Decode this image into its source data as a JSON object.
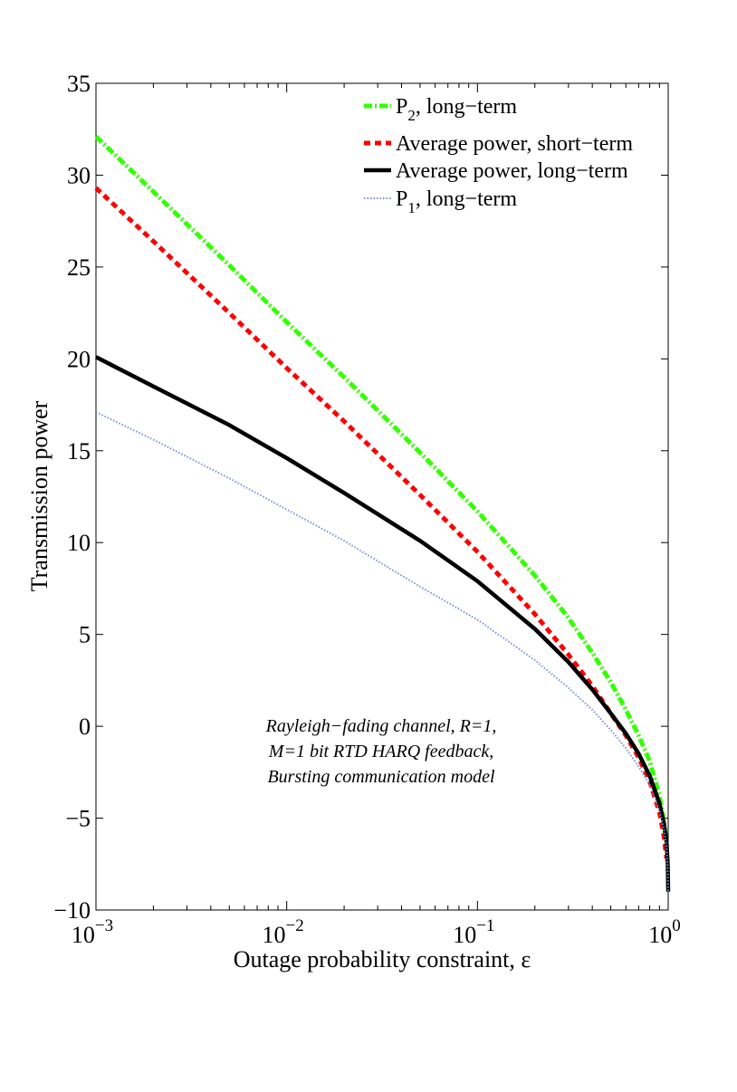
{
  "chart_data": {
    "type": "line",
    "xscale": "log",
    "xlim": [
      0.001,
      1
    ],
    "ylim": [
      -10,
      35
    ],
    "xlabel": "Outage probability constraint, ε",
    "ylabel": "Transmission power",
    "xticks": [
      {
        "value": 0.001,
        "base": "10",
        "exp": "−3"
      },
      {
        "value": 0.01,
        "base": "10",
        "exp": "−2"
      },
      {
        "value": 0.1,
        "base": "10",
        "exp": "−1"
      },
      {
        "value": 1,
        "base": "10",
        "exp": "0"
      }
    ],
    "yticks": [
      "−10",
      "−5",
      "0",
      "5",
      "10",
      "15",
      "20",
      "25",
      "30",
      "35"
    ],
    "grid": false,
    "legend_position": "top-right",
    "annotation": [
      "Rayleigh−fading channel, R=1,",
      "M=1 bit RTD HARQ feedback,",
      "Bursting communication model"
    ],
    "series": [
      {
        "name": "P2, long−term",
        "legend_main": "P",
        "legend_sub": "2",
        "legend_rest": ", long−term",
        "color": "#33ff00",
        "style": "dashdot",
        "x": [
          0.001,
          0.002,
          0.005,
          0.01,
          0.02,
          0.05,
          0.1,
          0.2,
          0.3,
          0.4,
          0.5,
          0.6,
          0.7,
          0.8,
          0.9,
          0.95,
          0.98
        ],
        "y": [
          32.1,
          29.1,
          25.1,
          22.0,
          19.0,
          14.9,
          11.7,
          8.2,
          5.9,
          4.0,
          2.4,
          0.9,
          -0.5,
          -1.9,
          -3.8,
          -5.2,
          -6.5
        ]
      },
      {
        "name": "Average power, short−term",
        "legend_main": "Average power, short−term",
        "legend_sub": "",
        "legend_rest": "",
        "color": "#ff0000",
        "style": "dashed",
        "x": [
          0.001,
          0.002,
          0.005,
          0.01,
          0.02,
          0.05,
          0.1,
          0.2,
          0.3,
          0.4,
          0.5,
          0.6,
          0.7,
          0.8,
          0.9,
          0.95,
          0.98
        ],
        "y": [
          29.3,
          26.4,
          22.5,
          19.5,
          16.6,
          12.6,
          9.5,
          6.1,
          3.9,
          2.2,
          0.7,
          -0.5,
          -1.7,
          -3.0,
          -4.7,
          -6.0,
          -7.2
        ]
      },
      {
        "name": "Average power, long−term",
        "legend_main": "Average power, long−term",
        "legend_sub": "",
        "legend_rest": "",
        "color": "#000000",
        "style": "solid",
        "x": [
          0.001,
          0.002,
          0.005,
          0.01,
          0.02,
          0.05,
          0.1,
          0.2,
          0.3,
          0.4,
          0.5,
          0.6,
          0.7,
          0.8,
          0.9,
          0.95,
          0.98,
          0.995,
          1.0
        ],
        "y": [
          20.1,
          18.5,
          16.4,
          14.6,
          12.7,
          10.1,
          7.9,
          5.3,
          3.5,
          2.0,
          0.7,
          -0.4,
          -1.5,
          -2.7,
          -4.2,
          -5.3,
          -6.3,
          -7.5,
          -9.0
        ]
      },
      {
        "name": "P1, long−term",
        "legend_main": "P",
        "legend_sub": "1",
        "legend_rest": ", long−term",
        "color": "#7b8fd8",
        "style": "dotted",
        "x": [
          0.001,
          0.002,
          0.005,
          0.01,
          0.02,
          0.05,
          0.1,
          0.2,
          0.3,
          0.4,
          0.5,
          0.6,
          0.7,
          0.8,
          0.9,
          0.95,
          0.98,
          0.995,
          1.0
        ],
        "y": [
          17.1,
          15.6,
          13.5,
          11.8,
          10.1,
          7.6,
          5.8,
          3.6,
          2.1,
          0.9,
          -0.2,
          -1.2,
          -2.2,
          -3.2,
          -4.6,
          -5.6,
          -6.6,
          -7.8,
          -9.0
        ]
      }
    ]
  }
}
